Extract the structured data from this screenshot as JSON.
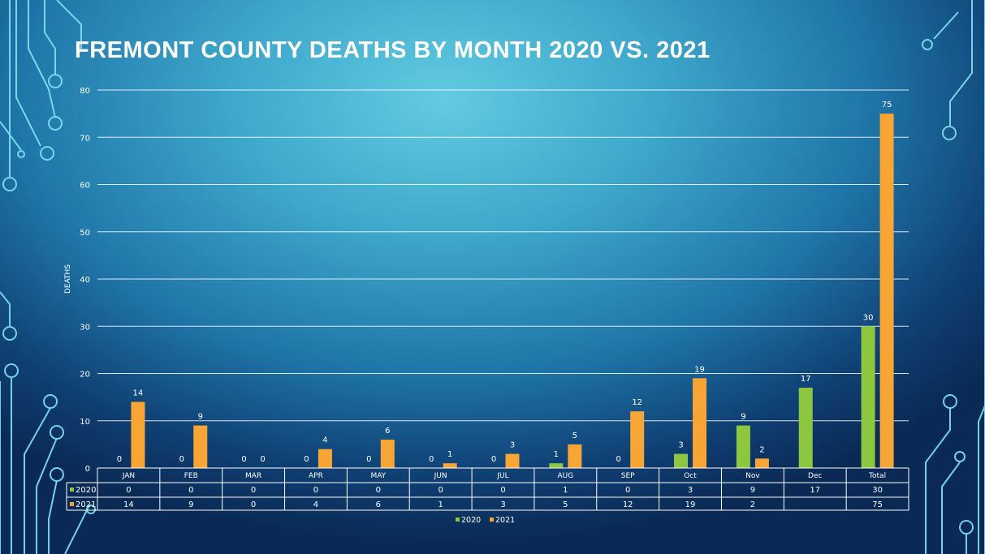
{
  "title": "FREMONT COUNTY DEATHS BY MONTH 2020 VS. 2021",
  "colors": {
    "s2020": "#8dc63f",
    "s2021": "#f7a535",
    "grid": "#ffffff"
  },
  "chart_data": {
    "type": "bar",
    "title": "FREMONT COUNTY DEATHS BY MONTH 2020 VS. 2021",
    "ylabel": "DEATHS",
    "xlabel": "",
    "ylim": [
      0,
      80
    ],
    "yticks": [
      0,
      10,
      20,
      30,
      40,
      50,
      60,
      70,
      80
    ],
    "grid": true,
    "legend": "bottom",
    "data_table": true,
    "categories": [
      "JAN",
      "FEB",
      "MAR",
      "APR",
      "MAY",
      "JUN",
      "JUL",
      "AUG",
      "SEP",
      "Oct",
      "Nov",
      "Dec",
      "Total"
    ],
    "series": [
      {
        "name": "2020",
        "values": [
          0,
          0,
          0,
          0,
          0,
          0,
          0,
          1,
          0,
          3,
          9,
          17,
          30
        ]
      },
      {
        "name": "2021",
        "values": [
          14,
          9,
          0,
          4,
          6,
          1,
          3,
          5,
          12,
          19,
          2,
          null,
          75
        ]
      }
    ]
  }
}
